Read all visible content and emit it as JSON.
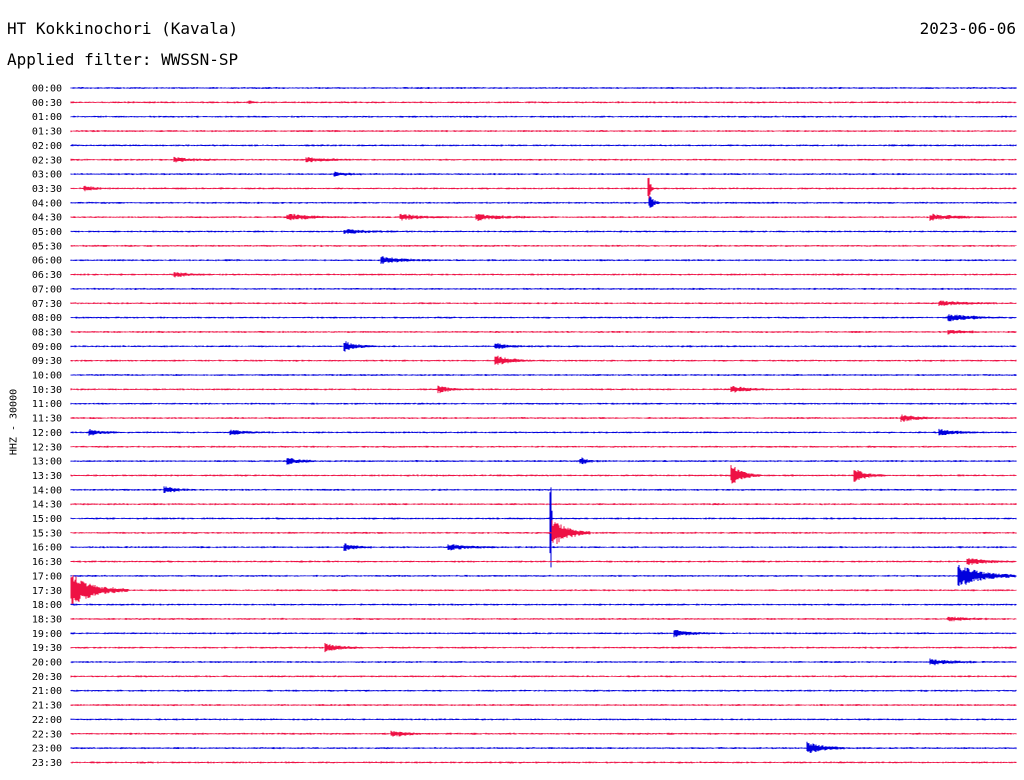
{
  "header": {
    "station": "HT Kokkinochori (Kavala)",
    "date": "2023-06-06",
    "filter": "Applied filter: WWSSN-SP"
  },
  "axis_label": "HHZ - 30000",
  "chart_data": {
    "type": "line",
    "title": "HT Kokkinochori (Kavala)",
    "subtitle": "Applied filter: WWSSN-SP",
    "date": "2023-06-06",
    "ylabel": "HHZ - 30000",
    "colors": [
      "#0000dd",
      "#ee1144"
    ],
    "row_labels": [
      "00:00",
      "00:30",
      "01:00",
      "01:30",
      "02:00",
      "02:30",
      "03:00",
      "03:30",
      "04:00",
      "04:30",
      "05:00",
      "05:30",
      "06:00",
      "06:30",
      "07:00",
      "07:30",
      "08:00",
      "08:30",
      "09:00",
      "09:30",
      "10:00",
      "10:30",
      "11:00",
      "11:30",
      "12:00",
      "12:30",
      "13:00",
      "13:30",
      "14:00",
      "14:30",
      "15:00",
      "15:30",
      "16:00",
      "16:30",
      "17:00",
      "17:30",
      "18:00",
      "18:30",
      "19:00",
      "19:30",
      "20:00",
      "20:30",
      "21:00",
      "21:30",
      "22:00",
      "22:30",
      "23:00",
      "23:30"
    ],
    "events": [
      {
        "row": 1,
        "at": 0.19,
        "amp": 2,
        "dur": 0.005
      },
      {
        "row": 5,
        "at": 0.11,
        "amp": 2,
        "dur": 0.05
      },
      {
        "row": 5,
        "at": 0.25,
        "amp": 2,
        "dur": 0.06
      },
      {
        "row": 6,
        "at": 0.28,
        "amp": 2,
        "dur": 0.03
      },
      {
        "row": 7,
        "at": 0.015,
        "amp": 3,
        "dur": 0.02
      },
      {
        "row": 7,
        "at": 0.612,
        "amp": 12,
        "dur": 0.004
      },
      {
        "row": 8,
        "at": 0.613,
        "amp": 6,
        "dur": 0.01
      },
      {
        "row": 9,
        "at": 0.23,
        "amp": 3,
        "dur": 0.06
      },
      {
        "row": 9,
        "at": 0.35,
        "amp": 3,
        "dur": 0.05
      },
      {
        "row": 9,
        "at": 0.43,
        "amp": 3,
        "dur": 0.06
      },
      {
        "row": 9,
        "at": 0.91,
        "amp": 3,
        "dur": 0.06
      },
      {
        "row": 10,
        "at": 0.29,
        "amp": 2,
        "dur": 0.06
      },
      {
        "row": 12,
        "at": 0.33,
        "amp": 3,
        "dur": 0.05
      },
      {
        "row": 13,
        "at": 0.11,
        "amp": 2,
        "dur": 0.04
      },
      {
        "row": 15,
        "at": 0.92,
        "amp": 2,
        "dur": 0.06
      },
      {
        "row": 16,
        "at": 0.93,
        "amp": 3,
        "dur": 0.06
      },
      {
        "row": 17,
        "at": 0.93,
        "amp": 2,
        "dur": 0.04
      },
      {
        "row": 18,
        "at": 0.29,
        "amp": 5,
        "dur": 0.03
      },
      {
        "row": 18,
        "at": 0.45,
        "amp": 3,
        "dur": 0.03
      },
      {
        "row": 19,
        "at": 0.45,
        "amp": 5,
        "dur": 0.04
      },
      {
        "row": 21,
        "at": 0.39,
        "amp": 3,
        "dur": 0.03
      },
      {
        "row": 21,
        "at": 0.7,
        "amp": 3,
        "dur": 0.04
      },
      {
        "row": 23,
        "at": 0.88,
        "amp": 3,
        "dur": 0.04
      },
      {
        "row": 24,
        "at": 0.02,
        "amp": 3,
        "dur": 0.03
      },
      {
        "row": 24,
        "at": 0.17,
        "amp": 2,
        "dur": 0.04
      },
      {
        "row": 24,
        "at": 0.92,
        "amp": 3,
        "dur": 0.04
      },
      {
        "row": 26,
        "at": 0.23,
        "amp": 3,
        "dur": 0.03
      },
      {
        "row": 26,
        "at": 0.54,
        "amp": 3,
        "dur": 0.02
      },
      {
        "row": 27,
        "at": 0.7,
        "amp": 10,
        "dur": 0.03
      },
      {
        "row": 27,
        "at": 0.83,
        "amp": 6,
        "dur": 0.03
      },
      {
        "row": 28,
        "at": 0.1,
        "amp": 3,
        "dur": 0.03
      },
      {
        "row": 30,
        "at": 0.508,
        "amp": 60,
        "dur": 0.002
      },
      {
        "row": 31,
        "at": 0.51,
        "amp": 15,
        "dur": 0.04
      },
      {
        "row": 32,
        "at": 0.29,
        "amp": 3,
        "dur": 0.03
      },
      {
        "row": 32,
        "at": 0.4,
        "amp": 3,
        "dur": 0.05
      },
      {
        "row": 33,
        "at": 0.95,
        "amp": 3,
        "dur": 0.05
      },
      {
        "row": 34,
        "at": 0.94,
        "amp": 12,
        "dur": 0.06
      },
      {
        "row": 35,
        "at": 0.001,
        "amp": 16,
        "dur": 0.06
      },
      {
        "row": 37,
        "at": 0.93,
        "amp": 2,
        "dur": 0.04
      },
      {
        "row": 38,
        "at": 0.64,
        "amp": 3,
        "dur": 0.04
      },
      {
        "row": 39,
        "at": 0.27,
        "amp": 4,
        "dur": 0.04
      },
      {
        "row": 40,
        "at": 0.91,
        "amp": 3,
        "dur": 0.05
      },
      {
        "row": 45,
        "at": 0.34,
        "amp": 3,
        "dur": 0.04
      },
      {
        "row": 46,
        "at": 0.78,
        "amp": 6,
        "dur": 0.04
      }
    ]
  }
}
